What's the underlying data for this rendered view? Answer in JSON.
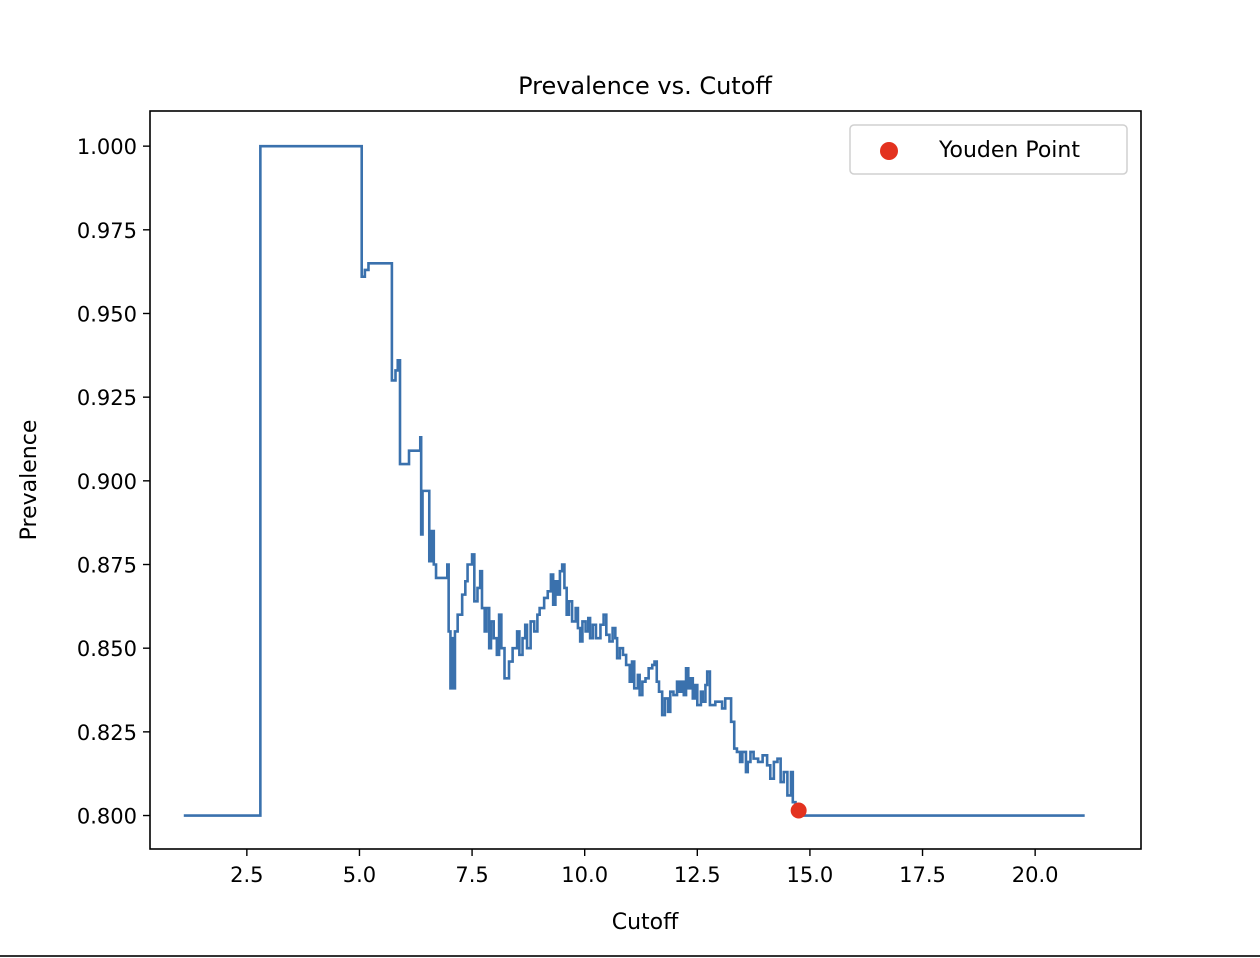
{
  "chart_data": {
    "type": "line",
    "title": "Prevalence vs. Cutoff",
    "xlabel": "Cutoff",
    "ylabel": "Prevalence",
    "xlim": [
      0.35,
      22.35
    ],
    "ylim": [
      0.79,
      1.0105
    ],
    "xticks": [
      2.5,
      5.0,
      7.5,
      10.0,
      12.5,
      15.0,
      17.5,
      20.0
    ],
    "xtick_labels": [
      "2.5",
      "5.0",
      "7.5",
      "10.0",
      "12.5",
      "15.0",
      "17.5",
      "20.0"
    ],
    "yticks": [
      0.8,
      0.825,
      0.85,
      0.875,
      0.9,
      0.925,
      0.95,
      0.975,
      1.0
    ],
    "ytick_labels": [
      "0.800",
      "0.825",
      "0.850",
      "0.875",
      "0.900",
      "0.925",
      "0.950",
      "0.975",
      "1.000"
    ],
    "grid": false,
    "legend": {
      "position": "top-right",
      "entries": [
        "Youden Point"
      ]
    },
    "line_color": "#3a71ad",
    "point_color": "#e3321f",
    "series": [
      {
        "values": [
          [
            1.1,
            0.8
          ],
          [
            2.8,
            0.8
          ],
          [
            2.8,
            1.0
          ],
          [
            5.05,
            1.0
          ],
          [
            5.05,
            0.961
          ],
          [
            5.12,
            0.961
          ],
          [
            5.12,
            0.963
          ],
          [
            5.2,
            0.963
          ],
          [
            5.2,
            0.965
          ],
          [
            5.72,
            0.965
          ],
          [
            5.72,
            0.93
          ],
          [
            5.8,
            0.93
          ],
          [
            5.8,
            0.933
          ],
          [
            5.85,
            0.933
          ],
          [
            5.85,
            0.936
          ],
          [
            5.9,
            0.936
          ],
          [
            5.9,
            0.905
          ],
          [
            6.1,
            0.905
          ],
          [
            6.1,
            0.909
          ],
          [
            6.35,
            0.909
          ],
          [
            6.35,
            0.913
          ],
          [
            6.37,
            0.913
          ],
          [
            6.37,
            0.884
          ],
          [
            6.4,
            0.884
          ],
          [
            6.4,
            0.897
          ],
          [
            6.55,
            0.897
          ],
          [
            6.55,
            0.876
          ],
          [
            6.6,
            0.876
          ],
          [
            6.6,
            0.885
          ],
          [
            6.65,
            0.885
          ],
          [
            6.65,
            0.875
          ],
          [
            6.7,
            0.875
          ],
          [
            6.7,
            0.871
          ],
          [
            6.95,
            0.871
          ],
          [
            6.95,
            0.875
          ],
          [
            6.98,
            0.875
          ],
          [
            6.98,
            0.855
          ],
          [
            7.02,
            0.855
          ],
          [
            7.02,
            0.838
          ],
          [
            7.05,
            0.838
          ],
          [
            7.05,
            0.853
          ],
          [
            7.08,
            0.853
          ],
          [
            7.08,
            0.838
          ],
          [
            7.12,
            0.838
          ],
          [
            7.12,
            0.855
          ],
          [
            7.18,
            0.855
          ],
          [
            7.18,
            0.86
          ],
          [
            7.28,
            0.86
          ],
          [
            7.28,
            0.866
          ],
          [
            7.35,
            0.866
          ],
          [
            7.35,
            0.87
          ],
          [
            7.4,
            0.87
          ],
          [
            7.4,
            0.875
          ],
          [
            7.5,
            0.875
          ],
          [
            7.5,
            0.878
          ],
          [
            7.55,
            0.878
          ],
          [
            7.55,
            0.864
          ],
          [
            7.62,
            0.864
          ],
          [
            7.62,
            0.868
          ],
          [
            7.68,
            0.868
          ],
          [
            7.68,
            0.873
          ],
          [
            7.72,
            0.873
          ],
          [
            7.72,
            0.862
          ],
          [
            7.78,
            0.862
          ],
          [
            7.78,
            0.855
          ],
          [
            7.82,
            0.855
          ],
          [
            7.82,
            0.862
          ],
          [
            7.88,
            0.862
          ],
          [
            7.88,
            0.85
          ],
          [
            7.92,
            0.85
          ],
          [
            7.92,
            0.858
          ],
          [
            7.98,
            0.858
          ],
          [
            7.98,
            0.853
          ],
          [
            8.05,
            0.853
          ],
          [
            8.05,
            0.848
          ],
          [
            8.1,
            0.848
          ],
          [
            8.1,
            0.86
          ],
          [
            8.15,
            0.86
          ],
          [
            8.15,
            0.85
          ],
          [
            8.22,
            0.85
          ],
          [
            8.22,
            0.841
          ],
          [
            8.32,
            0.841
          ],
          [
            8.32,
            0.846
          ],
          [
            8.4,
            0.846
          ],
          [
            8.4,
            0.85
          ],
          [
            8.5,
            0.85
          ],
          [
            8.5,
            0.855
          ],
          [
            8.55,
            0.855
          ],
          [
            8.55,
            0.848
          ],
          [
            8.62,
            0.848
          ],
          [
            8.62,
            0.853
          ],
          [
            8.68,
            0.853
          ],
          [
            8.68,
            0.857
          ],
          [
            8.72,
            0.857
          ],
          [
            8.72,
            0.85
          ],
          [
            8.8,
            0.85
          ],
          [
            8.8,
            0.858
          ],
          [
            8.88,
            0.858
          ],
          [
            8.88,
            0.855
          ],
          [
            8.95,
            0.855
          ],
          [
            8.95,
            0.86
          ],
          [
            9.0,
            0.86
          ],
          [
            9.0,
            0.862
          ],
          [
            9.1,
            0.862
          ],
          [
            9.1,
            0.865
          ],
          [
            9.18,
            0.865
          ],
          [
            9.18,
            0.867
          ],
          [
            9.25,
            0.867
          ],
          [
            9.25,
            0.872
          ],
          [
            9.3,
            0.872
          ],
          [
            9.3,
            0.863
          ],
          [
            9.35,
            0.863
          ],
          [
            9.35,
            0.87
          ],
          [
            9.4,
            0.87
          ],
          [
            9.4,
            0.866
          ],
          [
            9.45,
            0.866
          ],
          [
            9.45,
            0.873
          ],
          [
            9.5,
            0.873
          ],
          [
            9.5,
            0.875
          ],
          [
            9.55,
            0.875
          ],
          [
            9.55,
            0.868
          ],
          [
            9.6,
            0.868
          ],
          [
            9.6,
            0.86
          ],
          [
            9.65,
            0.86
          ],
          [
            9.65,
            0.864
          ],
          [
            9.72,
            0.864
          ],
          [
            9.72,
            0.858
          ],
          [
            9.8,
            0.858
          ],
          [
            9.8,
            0.862
          ],
          [
            9.85,
            0.862
          ],
          [
            9.85,
            0.856
          ],
          [
            9.9,
            0.856
          ],
          [
            9.9,
            0.852
          ],
          [
            9.95,
            0.852
          ],
          [
            9.95,
            0.858
          ],
          [
            10.02,
            0.858
          ],
          [
            10.02,
            0.855
          ],
          [
            10.08,
            0.855
          ],
          [
            10.08,
            0.859
          ],
          [
            10.12,
            0.859
          ],
          [
            10.12,
            0.853
          ],
          [
            10.18,
            0.853
          ],
          [
            10.18,
            0.857
          ],
          [
            10.25,
            0.857
          ],
          [
            10.25,
            0.853
          ],
          [
            10.35,
            0.853
          ],
          [
            10.35,
            0.857
          ],
          [
            10.42,
            0.857
          ],
          [
            10.42,
            0.86
          ],
          [
            10.48,
            0.86
          ],
          [
            10.48,
            0.854
          ],
          [
            10.55,
            0.854
          ],
          [
            10.55,
            0.852
          ],
          [
            10.62,
            0.852
          ],
          [
            10.62,
            0.856
          ],
          [
            10.68,
            0.856
          ],
          [
            10.68,
            0.853
          ],
          [
            10.72,
            0.853
          ],
          [
            10.72,
            0.847
          ],
          [
            10.78,
            0.847
          ],
          [
            10.78,
            0.85
          ],
          [
            10.85,
            0.85
          ],
          [
            10.85,
            0.848
          ],
          [
            10.92,
            0.848
          ],
          [
            10.92,
            0.845
          ],
          [
            11.0,
            0.845
          ],
          [
            11.0,
            0.84
          ],
          [
            11.05,
            0.84
          ],
          [
            11.05,
            0.846
          ],
          [
            11.1,
            0.846
          ],
          [
            11.1,
            0.838
          ],
          [
            11.18,
            0.838
          ],
          [
            11.18,
            0.842
          ],
          [
            11.22,
            0.842
          ],
          [
            11.22,
            0.836
          ],
          [
            11.28,
            0.836
          ],
          [
            11.28,
            0.84
          ],
          [
            11.35,
            0.84
          ],
          [
            11.35,
            0.841
          ],
          [
            11.42,
            0.841
          ],
          [
            11.42,
            0.844
          ],
          [
            11.5,
            0.844
          ],
          [
            11.5,
            0.845
          ],
          [
            11.55,
            0.845
          ],
          [
            11.55,
            0.846
          ],
          [
            11.6,
            0.846
          ],
          [
            11.6,
            0.84
          ],
          [
            11.65,
            0.84
          ],
          [
            11.65,
            0.837
          ],
          [
            11.72,
            0.837
          ],
          [
            11.72,
            0.83
          ],
          [
            11.78,
            0.83
          ],
          [
            11.78,
            0.835
          ],
          [
            11.85,
            0.835
          ],
          [
            11.85,
            0.831
          ],
          [
            11.9,
            0.831
          ],
          [
            11.9,
            0.837
          ],
          [
            11.97,
            0.837
          ],
          [
            11.97,
            0.836
          ],
          [
            12.05,
            0.836
          ],
          [
            12.05,
            0.84
          ],
          [
            12.1,
            0.84
          ],
          [
            12.1,
            0.837
          ],
          [
            12.15,
            0.837
          ],
          [
            12.15,
            0.84
          ],
          [
            12.2,
            0.84
          ],
          [
            12.2,
            0.836
          ],
          [
            12.25,
            0.836
          ],
          [
            12.25,
            0.844
          ],
          [
            12.3,
            0.844
          ],
          [
            12.3,
            0.838
          ],
          [
            12.35,
            0.838
          ],
          [
            12.35,
            0.841
          ],
          [
            12.4,
            0.841
          ],
          [
            12.4,
            0.835
          ],
          [
            12.45,
            0.835
          ],
          [
            12.45,
            0.839
          ],
          [
            12.5,
            0.839
          ],
          [
            12.5,
            0.833
          ],
          [
            12.58,
            0.833
          ],
          [
            12.58,
            0.837
          ],
          [
            12.62,
            0.837
          ],
          [
            12.62,
            0.834
          ],
          [
            12.68,
            0.834
          ],
          [
            12.68,
            0.839
          ],
          [
            12.72,
            0.839
          ],
          [
            12.72,
            0.843
          ],
          [
            12.78,
            0.843
          ],
          [
            12.78,
            0.833
          ],
          [
            12.9,
            0.833
          ],
          [
            12.9,
            0.834
          ],
          [
            13.05,
            0.834
          ],
          [
            13.05,
            0.832
          ],
          [
            13.12,
            0.832
          ],
          [
            13.12,
            0.835
          ],
          [
            13.25,
            0.835
          ],
          [
            13.25,
            0.828
          ],
          [
            13.32,
            0.828
          ],
          [
            13.32,
            0.82
          ],
          [
            13.38,
            0.82
          ],
          [
            13.38,
            0.819
          ],
          [
            13.45,
            0.819
          ],
          [
            13.45,
            0.816
          ],
          [
            13.5,
            0.816
          ],
          [
            13.5,
            0.819
          ],
          [
            13.58,
            0.819
          ],
          [
            13.58,
            0.813
          ],
          [
            13.62,
            0.813
          ],
          [
            13.62,
            0.816
          ],
          [
            13.68,
            0.816
          ],
          [
            13.68,
            0.819
          ],
          [
            13.75,
            0.819
          ],
          [
            13.75,
            0.817
          ],
          [
            13.85,
            0.817
          ],
          [
            13.85,
            0.816
          ],
          [
            13.95,
            0.816
          ],
          [
            13.95,
            0.818
          ],
          [
            14.05,
            0.818
          ],
          [
            14.05,
            0.815
          ],
          [
            14.12,
            0.815
          ],
          [
            14.12,
            0.811
          ],
          [
            14.2,
            0.811
          ],
          [
            14.2,
            0.816
          ],
          [
            14.28,
            0.816
          ],
          [
            14.28,
            0.817
          ],
          [
            14.35,
            0.817
          ],
          [
            14.35,
            0.81
          ],
          [
            14.42,
            0.81
          ],
          [
            14.42,
            0.813
          ],
          [
            14.5,
            0.813
          ],
          [
            14.5,
            0.806
          ],
          [
            14.58,
            0.806
          ],
          [
            14.58,
            0.813
          ],
          [
            14.62,
            0.813
          ],
          [
            14.62,
            0.804
          ],
          [
            14.68,
            0.804
          ],
          [
            14.68,
            0.8
          ],
          [
            21.1,
            0.8
          ]
        ]
      }
    ],
    "youden_point": {
      "label": "Youden Point",
      "x": 14.75,
      "y": 0.8015
    }
  }
}
